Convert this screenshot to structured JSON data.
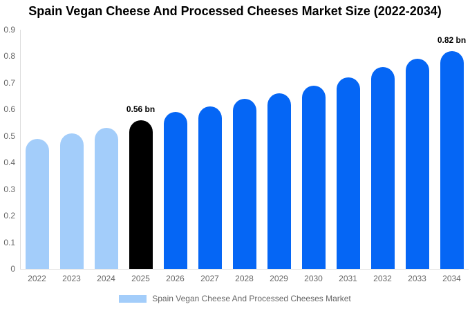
{
  "chart_data": {
    "type": "bar",
    "title": "Spain Vegan Cheese And Processed Cheeses Market Size (2022-2034)",
    "categories": [
      "2022",
      "2023",
      "2024",
      "2025",
      "2026",
      "2027",
      "2028",
      "2029",
      "2030",
      "2031",
      "2032",
      "2033",
      "2034"
    ],
    "values": [
      0.49,
      0.51,
      0.53,
      0.56,
      0.59,
      0.61,
      0.64,
      0.66,
      0.69,
      0.72,
      0.76,
      0.79,
      0.82
    ],
    "unit": "bn",
    "xlabel": "",
    "ylabel": "",
    "ylim": [
      0,
      0.9
    ],
    "yticks": [
      "0",
      "0.1",
      "0.2",
      "0.3",
      "0.4",
      "0.5",
      "0.6",
      "0.7",
      "0.8",
      "0.9"
    ],
    "grid": false,
    "legend_position": "bottom",
    "bar_colors": [
      "#a3cdfa",
      "#a3cdfa",
      "#a3cdfa",
      "#000000",
      "#0566f5",
      "#0566f5",
      "#0566f5",
      "#0566f5",
      "#0566f5",
      "#0566f5",
      "#0566f5",
      "#0566f5",
      "#0566f5"
    ],
    "data_labels": [
      {
        "category": "2025",
        "text": "0.56 bn"
      },
      {
        "category": "2034",
        "text": "0.82 bn"
      }
    ],
    "legend": {
      "label": "Spain Vegan Cheese And Processed Cheeses Market",
      "swatch_color": "#a3cdfa"
    },
    "colors": {
      "historical_bar": "#a3cdfa",
      "highlight_bar": "#000000",
      "forecast_bar": "#0566f5",
      "axis_line": "#dddddd",
      "tick_label": "#666666",
      "title": "#000000",
      "data_label": "#000000",
      "background": "#ffffff"
    }
  }
}
